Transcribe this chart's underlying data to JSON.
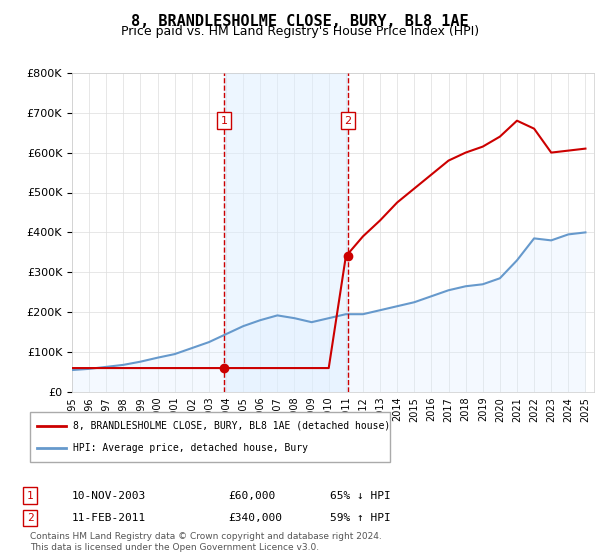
{
  "title": "8, BRANDLESHOLME CLOSE, BURY, BL8 1AE",
  "subtitle": "Price paid vs. HM Land Registry's House Price Index (HPI)",
  "ylabel": "",
  "ylim": [
    0,
    800000
  ],
  "yticks": [
    0,
    100000,
    200000,
    300000,
    400000,
    500000,
    600000,
    700000,
    800000
  ],
  "ytick_labels": [
    "£0",
    "£100K",
    "£200K",
    "£300K",
    "£400K",
    "£500K",
    "£600K",
    "£700K",
    "£800K"
  ],
  "background_color": "#ffffff",
  "plot_bg_color": "#ffffff",
  "grid_color": "#dddddd",
  "sale_color": "#cc0000",
  "hpi_color": "#6699cc",
  "hpi_fill_color": "#ddeeff",
  "vline_color": "#cc0000",
  "shade_color": "#ddeeff",
  "transaction_dates": [
    "2003-11-10",
    "2011-02-11"
  ],
  "transaction_prices": [
    60000,
    340000
  ],
  "transaction_labels": [
    "1",
    "2"
  ],
  "legend_sale_label": "8, BRANDLESHOLME CLOSE, BURY, BL8 1AE (detached house)",
  "legend_hpi_label": "HPI: Average price, detached house, Bury",
  "table_rows": [
    [
      "1",
      "10-NOV-2003",
      "£60,000",
      "65% ↓ HPI"
    ],
    [
      "2",
      "11-FEB-2011",
      "£340,000",
      "59% ↑ HPI"
    ]
  ],
  "footer": "Contains HM Land Registry data © Crown copyright and database right 2024.\nThis data is licensed under the Open Government Licence v3.0.",
  "hpi_years": [
    1995,
    1996,
    1997,
    1998,
    1999,
    2000,
    2001,
    2002,
    2003,
    2004,
    2005,
    2006,
    2007,
    2008,
    2009,
    2010,
    2011,
    2012,
    2013,
    2014,
    2015,
    2016,
    2017,
    2018,
    2019,
    2020,
    2021,
    2022,
    2023,
    2024,
    2025
  ],
  "hpi_values": [
    55000,
    58000,
    63000,
    68000,
    76000,
    86000,
    95000,
    110000,
    125000,
    145000,
    165000,
    180000,
    192000,
    185000,
    175000,
    185000,
    195000,
    195000,
    205000,
    215000,
    225000,
    240000,
    255000,
    265000,
    270000,
    285000,
    330000,
    385000,
    380000,
    395000,
    400000
  ],
  "sale_line_years": [
    1995,
    1996,
    1997,
    1998,
    1999,
    2000,
    2001,
    2002,
    2003,
    2004,
    2005,
    2006,
    2007,
    2008,
    2009,
    2010,
    2011,
    2012,
    2013,
    2014,
    2015,
    2016,
    2017,
    2018,
    2019,
    2020,
    2021,
    2022,
    2023,
    2024,
    2025
  ],
  "sale_line_values": [
    60000,
    60000,
    60000,
    60000,
    60000,
    60000,
    60000,
    60000,
    60000,
    60000,
    60000,
    60000,
    60000,
    60000,
    60000,
    60000,
    340000,
    390000,
    430000,
    475000,
    510000,
    545000,
    580000,
    600000,
    615000,
    640000,
    680000,
    660000,
    600000,
    605000,
    610000
  ]
}
